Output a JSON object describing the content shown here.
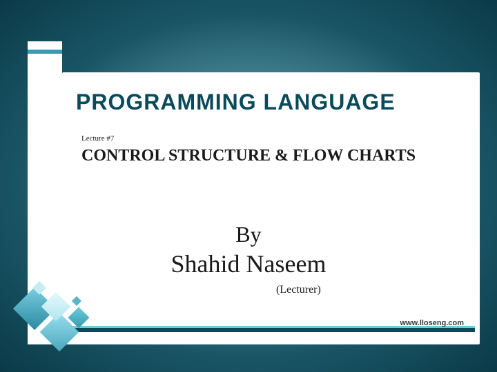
{
  "slide": {
    "main_title": "PROGRAMMING LANGUAGE",
    "lecture_number": "Lecture #7",
    "subtitle": "CONTROL STRUCTURE &  FLOW CHARTS",
    "by_label": "By",
    "author": "Shahid Naseem",
    "role": "(Lecturer)",
    "website": "www.lloseng.com"
  },
  "styling": {
    "background_gradient_inner": "#8ab8c5",
    "background_gradient_outer": "#0a3a48",
    "panel_bg": "#ffffff",
    "title_color": "#0a4a5a",
    "text_color": "#1a1a1a",
    "accent_teal": "#6accdd",
    "accent_dark": "#0a4a5a",
    "title_fontsize": 32,
    "subtitle_fontsize": 24,
    "author_fontsize": 36,
    "by_fontsize": 32,
    "lecture_fontsize": 11,
    "role_fontsize": 16,
    "website_fontsize": 11,
    "diamond_colors": [
      "#7acde0",
      "#2a8aa0",
      "#9adff0",
      "#4aa8bc",
      "#e8f8fb",
      "#b0e5ef",
      "#6accdd",
      "#3a9aae",
      "#c5ecf3",
      "#5ab5c8"
    ]
  }
}
